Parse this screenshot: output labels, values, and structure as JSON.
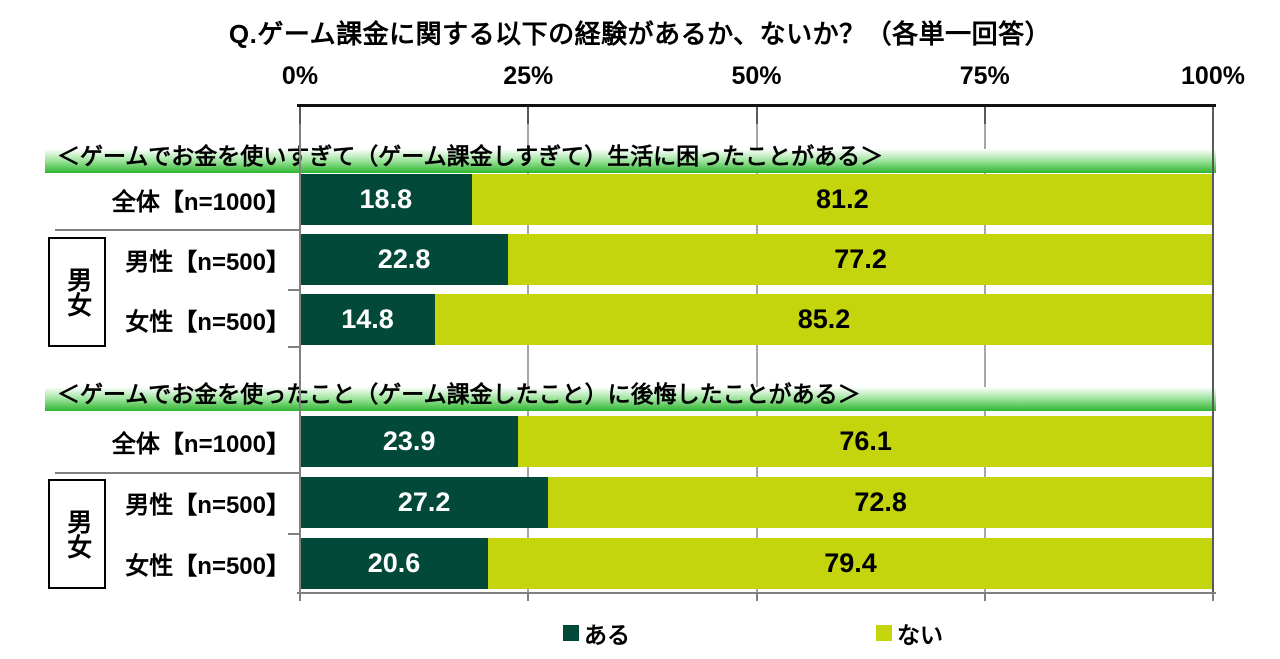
{
  "title": "Q.ゲーム課金に関する以下の経験があるか、ないか？（各単一回答）",
  "axis": {
    "tick_labels": [
      "0%",
      "25%",
      "50%",
      "75%",
      "100%"
    ],
    "tick_values": [
      0,
      25,
      50,
      75,
      100
    ]
  },
  "group_label": "男女",
  "legend": {
    "items": [
      {
        "label": "ある",
        "color": "#02493A",
        "value_color": "#FFFFFF"
      },
      {
        "label": "ない",
        "color": "#C4D40D",
        "value_color": "#000000"
      }
    ]
  },
  "chart_data": [
    {
      "type": "bar",
      "stacked": true,
      "orientation": "horizontal",
      "xlim": [
        0,
        100
      ],
      "grid": true,
      "section_title": "＜ゲームでお金を使いすぎて（ゲーム課金しすぎて）生活に困ったことがある＞",
      "categories": [
        "全体【n=1000】",
        "男性【n=500】",
        "女性【n=500】"
      ],
      "series": [
        {
          "name": "ある",
          "values": [
            18.8,
            22.8,
            14.8
          ]
        },
        {
          "name": "ない",
          "values": [
            81.2,
            77.2,
            85.2
          ]
        }
      ]
    },
    {
      "type": "bar",
      "stacked": true,
      "orientation": "horizontal",
      "xlim": [
        0,
        100
      ],
      "grid": true,
      "section_title": "＜ゲームでお金を使ったこと（ゲーム課金したこと）に後悔したことがある＞",
      "categories": [
        "全体【n=1000】",
        "男性【n=500】",
        "女性【n=500】"
      ],
      "series": [
        {
          "name": "ある",
          "values": [
            23.9,
            27.2,
            20.6
          ]
        },
        {
          "name": "ない",
          "values": [
            76.1,
            72.8,
            79.4
          ]
        }
      ]
    }
  ]
}
